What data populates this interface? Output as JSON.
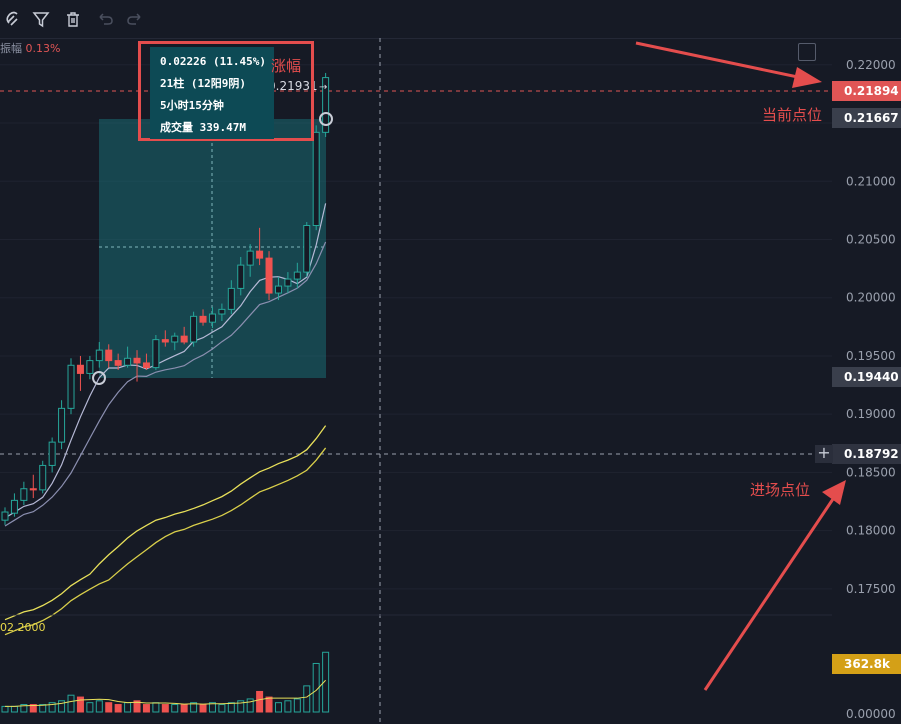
{
  "toolbar": {
    "icons": [
      "magnet-icon",
      "filter-icon",
      "trash-icon",
      "undo-icon",
      "redo-icon"
    ]
  },
  "amplitude_label": {
    "name": "振幅",
    "value": "0.13%"
  },
  "measure_panel": {
    "change": "0.02226 (11.45%)",
    "bars": "21柱 (12阳9阴)",
    "duration": "5小时15分钟",
    "volume": "成交量 339.47M"
  },
  "annotations": {
    "rise": "涨幅",
    "current_price_label": "当前点位",
    "entry_price_label": "进场点位"
  },
  "candle_high_label": "0.21931",
  "volume_indicator_value": "02.2000",
  "price_axis": {
    "ticks": [
      "0.22000",
      "0.21500",
      "0.21000",
      "0.20500",
      "0.20000",
      "0.19500",
      "0.19000",
      "0.18500",
      "0.18000",
      "0.17500"
    ],
    "volume_tick": "0.00000",
    "tags": {
      "current": "0.21894",
      "upper": "0.21667",
      "lower": "0.19440",
      "crosshair": "0.18792",
      "volume": "362.8k"
    }
  },
  "colors": {
    "background": "#161a25",
    "up": "#26a69a",
    "down": "#ef5350",
    "annotation": "#e44d4d",
    "measure_fill": "#0d4a55",
    "volume_tag": "#d4a017"
  },
  "chart_data": {
    "type": "candlestick",
    "price_range": [
      0.1725,
      0.2223
    ],
    "candles": [
      {
        "o": 0.1809,
        "h": 0.182,
        "l": 0.1805,
        "c": 0.1816
      },
      {
        "o": 0.1815,
        "h": 0.1832,
        "l": 0.1812,
        "c": 0.1826
      },
      {
        "o": 0.1826,
        "h": 0.1842,
        "l": 0.1822,
        "c": 0.1836
      },
      {
        "o": 0.1836,
        "h": 0.1848,
        "l": 0.1828,
        "c": 0.1835
      },
      {
        "o": 0.1835,
        "h": 0.186,
        "l": 0.1832,
        "c": 0.1856
      },
      {
        "o": 0.1856,
        "h": 0.188,
        "l": 0.185,
        "c": 0.1876
      },
      {
        "o": 0.1876,
        "h": 0.1912,
        "l": 0.187,
        "c": 0.1905
      },
      {
        "o": 0.1905,
        "h": 0.1948,
        "l": 0.19,
        "c": 0.1942
      },
      {
        "o": 0.1942,
        "h": 0.195,
        "l": 0.192,
        "c": 0.1935
      },
      {
        "o": 0.1935,
        "h": 0.195,
        "l": 0.193,
        "c": 0.1946
      },
      {
        "o": 0.1946,
        "h": 0.1962,
        "l": 0.194,
        "c": 0.1955
      },
      {
        "o": 0.1955,
        "h": 0.196,
        "l": 0.194,
        "c": 0.1946
      },
      {
        "o": 0.1946,
        "h": 0.1952,
        "l": 0.1938,
        "c": 0.1942
      },
      {
        "o": 0.1942,
        "h": 0.1958,
        "l": 0.194,
        "c": 0.1948
      },
      {
        "o": 0.1948,
        "h": 0.1955,
        "l": 0.1928,
        "c": 0.1944
      },
      {
        "o": 0.1944,
        "h": 0.1952,
        "l": 0.1938,
        "c": 0.194
      },
      {
        "o": 0.194,
        "h": 0.1968,
        "l": 0.1938,
        "c": 0.1964
      },
      {
        "o": 0.1964,
        "h": 0.1972,
        "l": 0.1958,
        "c": 0.1962
      },
      {
        "o": 0.1962,
        "h": 0.197,
        "l": 0.1955,
        "c": 0.1967
      },
      {
        "o": 0.1967,
        "h": 0.1975,
        "l": 0.196,
        "c": 0.1962
      },
      {
        "o": 0.1962,
        "h": 0.1988,
        "l": 0.1958,
        "c": 0.1984
      },
      {
        "o": 0.1984,
        "h": 0.199,
        "l": 0.1976,
        "c": 0.1979
      },
      {
        "o": 0.1979,
        "h": 0.1992,
        "l": 0.1974,
        "c": 0.1986
      },
      {
        "o": 0.1986,
        "h": 0.1995,
        "l": 0.198,
        "c": 0.199
      },
      {
        "o": 0.199,
        "h": 0.2015,
        "l": 0.1986,
        "c": 0.2008
      },
      {
        "o": 0.2008,
        "h": 0.2035,
        "l": 0.2002,
        "c": 0.2028
      },
      {
        "o": 0.2028,
        "h": 0.2046,
        "l": 0.2018,
        "c": 0.204
      },
      {
        "o": 0.204,
        "h": 0.206,
        "l": 0.2028,
        "c": 0.2034
      },
      {
        "o": 0.2034,
        "h": 0.204,
        "l": 0.1998,
        "c": 0.2004
      },
      {
        "o": 0.2004,
        "h": 0.2018,
        "l": 0.1998,
        "c": 0.201
      },
      {
        "o": 0.201,
        "h": 0.2022,
        "l": 0.2004,
        "c": 0.2016
      },
      {
        "o": 0.2016,
        "h": 0.203,
        "l": 0.2008,
        "c": 0.2022
      },
      {
        "o": 0.2022,
        "h": 0.2065,
        "l": 0.2018,
        "c": 0.2062
      },
      {
        "o": 0.2062,
        "h": 0.2148,
        "l": 0.2058,
        "c": 0.2142
      },
      {
        "o": 0.2142,
        "h": 0.2193,
        "l": 0.2138,
        "c": 0.2189
      }
    ],
    "volume_range": [
      0,
      4.5
    ],
    "volumes": [
      0.3,
      0.3,
      0.4,
      0.4,
      0.4,
      0.5,
      0.6,
      0.9,
      0.8,
      0.5,
      0.6,
      0.5,
      0.4,
      0.5,
      0.6,
      0.4,
      0.5,
      0.4,
      0.4,
      0.4,
      0.5,
      0.4,
      0.5,
      0.4,
      0.5,
      0.6,
      0.7,
      1.1,
      0.8,
      0.5,
      0.6,
      0.7,
      1.4,
      2.6,
      3.2
    ]
  }
}
